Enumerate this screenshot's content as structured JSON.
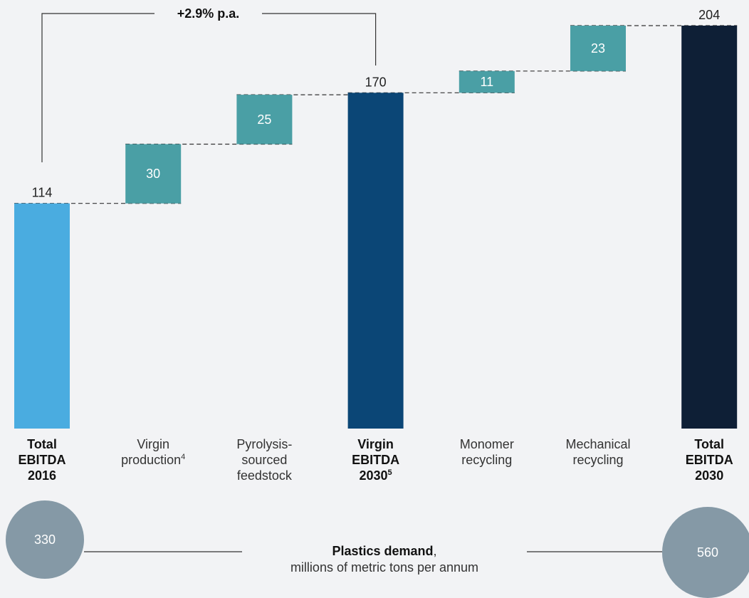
{
  "chart_data": {
    "type": "waterfall",
    "categories": [
      {
        "label": "Total EBITDA 2016",
        "lines": [
          "Total",
          "EBITDA",
          "2016"
        ],
        "bold": true,
        "kind": "total",
        "value": 114,
        "color": "#4aace0"
      },
      {
        "label": "Virgin production4",
        "lines": [
          "Virgin",
          "production"
        ],
        "sup": "4",
        "bold": false,
        "kind": "delta",
        "value": 30,
        "color": "#4a9fa5"
      },
      {
        "label": "Pyrolysis-sourced feedstock",
        "lines": [
          "Pyrolysis-",
          "sourced",
          "feedstock"
        ],
        "bold": false,
        "kind": "delta",
        "value": 25,
        "color": "#4a9fa5"
      },
      {
        "label": "Virgin EBITDA 20305",
        "lines": [
          "Virgin",
          "EBITDA",
          "2030"
        ],
        "sup": "5",
        "bold": true,
        "kind": "total",
        "value": 170,
        "color": "#0b4676"
      },
      {
        "label": "Monomer recycling",
        "lines": [
          "Monomer",
          "recycling"
        ],
        "bold": false,
        "kind": "delta",
        "value": 11,
        "color": "#4a9fa5"
      },
      {
        "label": "Mechanical recycling",
        "lines": [
          "Mechanical",
          "recycling"
        ],
        "bold": false,
        "kind": "delta",
        "value": 23,
        "color": "#4a9fa5"
      },
      {
        "label": "Total EBITDA 2030",
        "lines": [
          "Total",
          "EBITDA",
          "2030"
        ],
        "bold": true,
        "kind": "total",
        "value": 204,
        "color": "#0e1f36"
      }
    ],
    "ylim": [
      0,
      204
    ],
    "growth_annotation": "+2.9% p.a.",
    "title": "",
    "xlabel": "",
    "ylabel": ""
  },
  "demand": {
    "start_value": "330",
    "end_value": "560",
    "label_bold": "Plastics demand",
    "label_rest": ",",
    "units": "millions of metric tons per annum"
  }
}
